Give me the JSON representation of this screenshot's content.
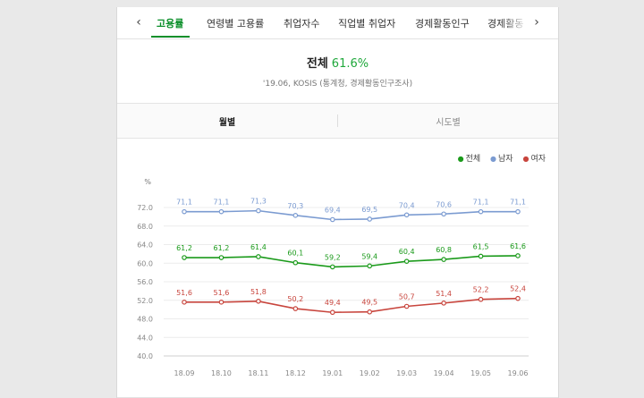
{
  "nav": {
    "prev_icon": "‹",
    "next_icon": "›",
    "tabs": [
      {
        "label": "고용률",
        "active": true
      },
      {
        "label": "연령별 고용률",
        "active": false
      },
      {
        "label": "취업자수",
        "active": false
      },
      {
        "label": "직업별 취업자",
        "active": false
      },
      {
        "label": "경제활동인구",
        "active": false
      },
      {
        "label": "경제활동",
        "active": false
      }
    ]
  },
  "summary": {
    "label": "전체",
    "rate": "61.6%",
    "source": "'19.06, KOSIS (통계청, 경제활동인구조사)"
  },
  "view_tabs": {
    "monthly": "월별",
    "regional": "시도별"
  },
  "legend": [
    {
      "name": "전체",
      "color": "#1a9a1a"
    },
    {
      "name": "남자",
      "color": "#7b9bd1"
    },
    {
      "name": "여자",
      "color": "#c8453d"
    }
  ],
  "chart_data": {
    "type": "line",
    "y_unit_label": "%",
    "x": [
      "18.09",
      "18.10",
      "18.11",
      "18.12",
      "19.01",
      "19.02",
      "19.03",
      "19.04",
      "19.05",
      "19.06"
    ],
    "ylim": [
      40.0,
      72.0
    ],
    "yticks": [
      "40.0",
      "44.0",
      "48.0",
      "52.0",
      "56.0",
      "60.0",
      "64.0",
      "68.0",
      "72.0"
    ],
    "series": [
      {
        "name": "남자",
        "color": "#7b9bd1",
        "values": [
          71.1,
          71.1,
          71.3,
          70.3,
          69.4,
          69.5,
          70.4,
          70.6,
          71.1,
          71.1
        ],
        "labels": [
          "71,1",
          "71,1",
          "71,3",
          "70,3",
          "69,4",
          "69,5",
          "70,4",
          "70,6",
          "71,1",
          "71,1"
        ]
      },
      {
        "name": "전체",
        "color": "#1a9a1a",
        "values": [
          61.2,
          61.2,
          61.4,
          60.1,
          59.2,
          59.4,
          60.4,
          60.8,
          61.5,
          61.6
        ],
        "labels": [
          "61,2",
          "61,2",
          "61,4",
          "60,1",
          "59,2",
          "59,4",
          "60,4",
          "60,8",
          "61,5",
          "61,6"
        ]
      },
      {
        "name": "여자",
        "color": "#c8453d",
        "values": [
          51.6,
          51.6,
          51.8,
          50.2,
          49.4,
          49.5,
          50.7,
          51.4,
          52.2,
          52.4
        ],
        "labels": [
          "51,6",
          "51,6",
          "51,8",
          "50,2",
          "49,4",
          "49,5",
          "50,7",
          "51,4",
          "52,2",
          "52,4"
        ]
      }
    ],
    "grid": true,
    "legend_position": "top-right"
  }
}
